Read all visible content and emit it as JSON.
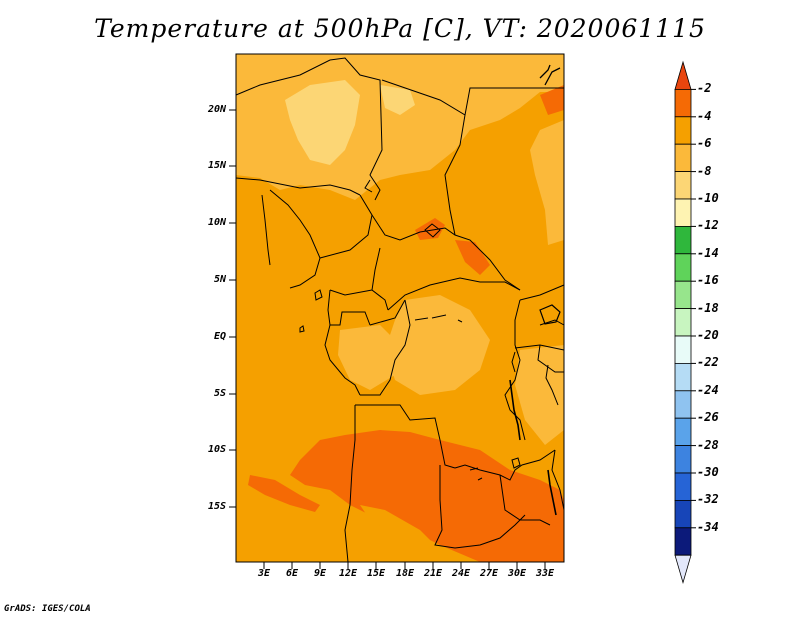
{
  "title": "Temperature at 500hPa [C], VT: 2020061115",
  "credit": "GrADS: IGES/COLA",
  "lat_ticks": [
    "20N",
    "15N",
    "10N",
    "5N",
    "EQ",
    "5S",
    "10S",
    "15S"
  ],
  "lon_ticks": [
    "3E",
    "6E",
    "9E",
    "12E",
    "15E",
    "18E",
    "21E",
    "24E",
    "27E",
    "30E",
    "33E"
  ],
  "colorbar": {
    "labels": [
      "-2",
      "-4",
      "-6",
      "-8",
      "-10",
      "-12",
      "-14",
      "-16",
      "-18",
      "-20",
      "-22",
      "-24",
      "-26",
      "-28",
      "-30",
      "-32",
      "-34"
    ],
    "colors": [
      "#e8450e",
      "#f56a05",
      "#f5a000",
      "#fbb93a",
      "#fcd675",
      "#fef3b2",
      "#2fb73c",
      "#5fd35a",
      "#97e58c",
      "#c8f5c0",
      "#e8fbf8",
      "#b5dcf5",
      "#8fc3f0",
      "#5aa3ea",
      "#3d83e0",
      "#2664d6",
      "#1745b8",
      "#0c1a7a",
      "#e3e8fb"
    ]
  },
  "field_colors": {
    "base": "#f5a000",
    "warm": "#f56a05",
    "cool": "#fbb93a",
    "cooler": "#fcd675"
  }
}
